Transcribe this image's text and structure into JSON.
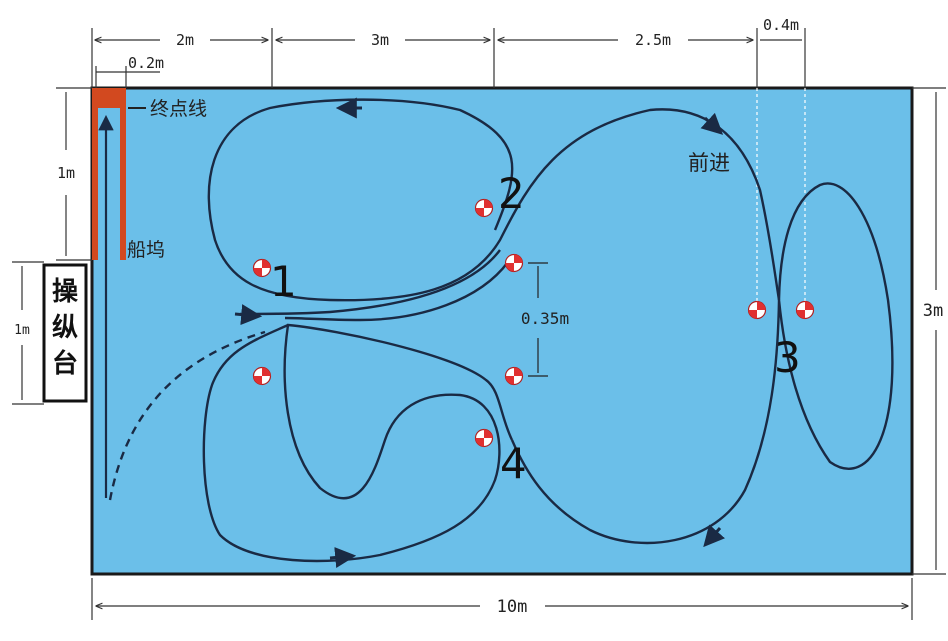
{
  "dimensions": {
    "seg_2m": "2m",
    "seg_3m": "3m",
    "seg_2_5m": "2.5m",
    "seg_0_4m": "0.4m",
    "dock_width": "0.2m",
    "left_1m_top": "1m",
    "left_1m_console": "1m",
    "height_3m": "3m",
    "gap_0_35m": "0.35m",
    "total_10m": "10m"
  },
  "labels": {
    "finish_line": "终点线",
    "dock": "船坞",
    "forward": "前进",
    "console": [
      "操",
      "纵",
      "台"
    ]
  },
  "buoys": [
    {
      "id": "1",
      "label": "1"
    },
    {
      "id": "2",
      "label": "2"
    },
    {
      "id": "3",
      "label": "3"
    },
    {
      "id": "4",
      "label": "4"
    }
  ],
  "colors": {
    "pool": "#6bbfe9",
    "pool_border": "#1a1a1a",
    "dock": "#d2491f",
    "path": "#1a2a44",
    "buoy_red": "#e03030"
  },
  "icons": [
    "buoy-icon",
    "arrow-icon"
  ]
}
